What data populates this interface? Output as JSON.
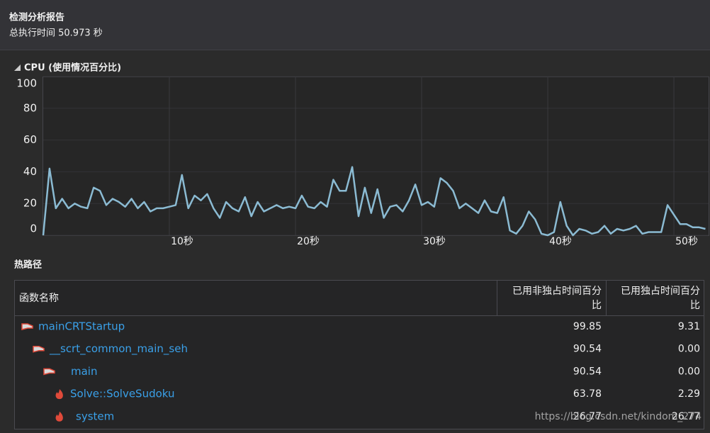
{
  "header": {
    "title": "检测分析报告",
    "subtitle": "总执行时间 50.973 秒"
  },
  "chart_data": {
    "type": "line",
    "title": "CPU (使用情况百分比)",
    "x": [
      0,
      0.5,
      1,
      1.5,
      2,
      2.5,
      3,
      3.5,
      4,
      4.5,
      5,
      5.5,
      6,
      6.5,
      7,
      7.5,
      8,
      8.5,
      9,
      9.5,
      10,
      10.5,
      11,
      11.5,
      12,
      12.5,
      13,
      13.5,
      14,
      14.5,
      15,
      15.5,
      16,
      16.5,
      17,
      17.5,
      18,
      18.5,
      19,
      19.5,
      20,
      20.5,
      21,
      21.5,
      22,
      22.5,
      23,
      23.5,
      24,
      24.5,
      25,
      25.5,
      26,
      26.5,
      27,
      27.5,
      28,
      28.5,
      29,
      29.5,
      30,
      30.5,
      31,
      31.5,
      32,
      32.5,
      33,
      33.5,
      34,
      34.5,
      35,
      35.5,
      36,
      36.5,
      37,
      37.5,
      38,
      38.5,
      39,
      39.5,
      40,
      40.5,
      41,
      41.5,
      42,
      42.5,
      43,
      43.5,
      44,
      44.5,
      45,
      45.5,
      46,
      46.5,
      47,
      47.5,
      48,
      48.5,
      49,
      49.5,
      50,
      50.5,
      51,
      51.5,
      52,
      52.5
    ],
    "series": [
      {
        "name": "CPU",
        "color": "#8bbbd3",
        "values": [
          0,
          42,
          17,
          23,
          17,
          20,
          18,
          17,
          30,
          28,
          19,
          23,
          21,
          18,
          23,
          17,
          21,
          15,
          17,
          17,
          18,
          19,
          38,
          17,
          25,
          22,
          26,
          17,
          11,
          21,
          17,
          15,
          24,
          12,
          21,
          15,
          17,
          19,
          17,
          18,
          17,
          25,
          18,
          17,
          21,
          18,
          35,
          28,
          28,
          43,
          12,
          30,
          14,
          29,
          11,
          18,
          19,
          15,
          22,
          32,
          19,
          21,
          18,
          36,
          33,
          28,
          17,
          20,
          17,
          14,
          22,
          15,
          14,
          24,
          3,
          1,
          6,
          15,
          10,
          1,
          0,
          2,
          21,
          6,
          0,
          4,
          3,
          1,
          2,
          6,
          1,
          4,
          3,
          4,
          6,
          1,
          2,
          2,
          2,
          19,
          13,
          7,
          7,
          5,
          5,
          4
        ]
      }
    ],
    "xlim": [
      0,
      52.75
    ],
    "ylim": [
      0,
      100
    ],
    "xticks": [
      {
        "value": 10,
        "label": "10秒"
      },
      {
        "value": 20,
        "label": "20秒"
      },
      {
        "value": 30,
        "label": "30秒"
      },
      {
        "value": 40,
        "label": "40秒"
      },
      {
        "value": 50,
        "label": "50秒"
      }
    ],
    "yticks": [
      0,
      20,
      40,
      60,
      80,
      100
    ],
    "grid": true
  },
  "hot_path": {
    "title": "热路径",
    "table": {
      "columns": [
        "函数名称",
        "已用非独占时间百分比",
        "已用独占时间百分比"
      ],
      "rows": [
        [
          "mainCRTStartup",
          "99.85",
          "9.31"
        ],
        [
          "__scrt_common_main_seh",
          "90.54",
          "0.00"
        ],
        [
          "main",
          "90.54",
          "0.00"
        ],
        [
          "Solve::SolveSudoku",
          "63.78",
          "2.29"
        ],
        [
          "system",
          "26.77",
          "26.77"
        ]
      ]
    }
  },
  "watermark": "https://blog.csdn.net/kindom_274"
}
